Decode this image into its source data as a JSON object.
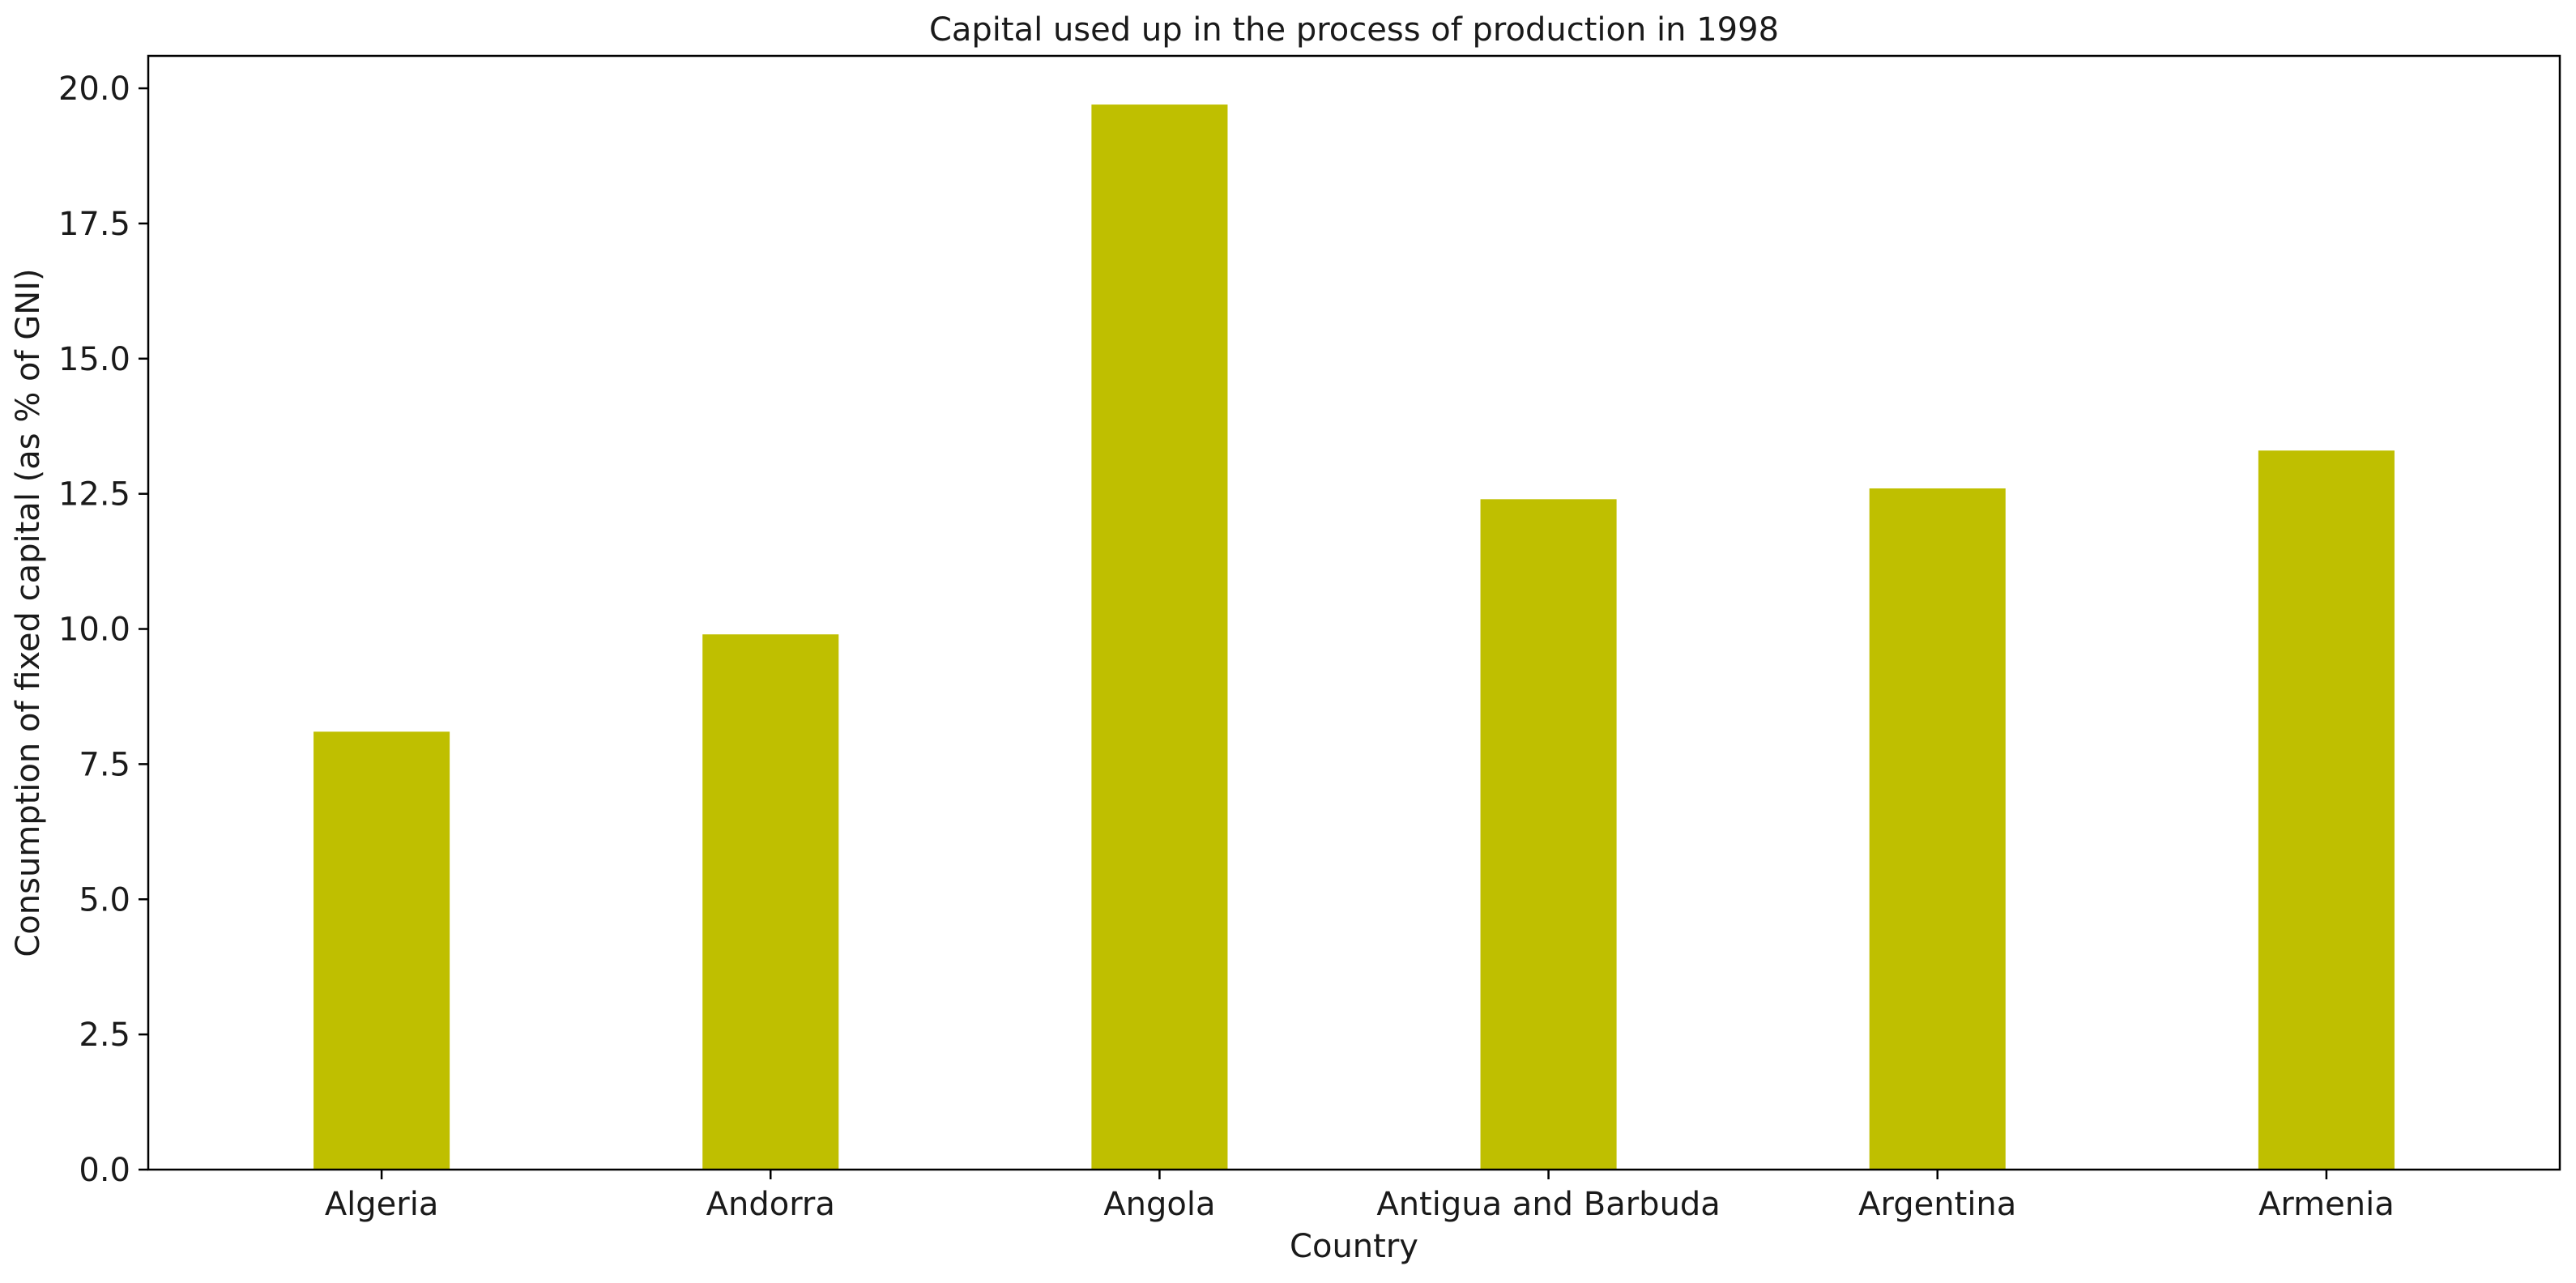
{
  "chart_data": {
    "type": "bar",
    "title": "Capital used up in the process of production in 1998",
    "xlabel": "Country",
    "ylabel": "Consumption of fixed capital (as % of GNI)",
    "categories": [
      "Algeria",
      "Andorra",
      "Angola",
      "Antigua and Barbuda",
      "Argentina",
      "Armenia"
    ],
    "values": [
      8.1,
      9.9,
      19.7,
      12.4,
      12.6,
      13.3
    ],
    "ylim": [
      0,
      20.6
    ],
    "yticks": [
      0,
      2.5,
      5,
      7.5,
      10,
      12.5,
      15,
      17.5,
      20
    ],
    "ytick_labels": [
      "0.0",
      "2.5",
      "5.0",
      "7.5",
      "10.0",
      "12.5",
      "15.0",
      "17.5",
      "20.0"
    ],
    "grid": false,
    "legend": "none",
    "bar_color": "#bfbf00"
  }
}
